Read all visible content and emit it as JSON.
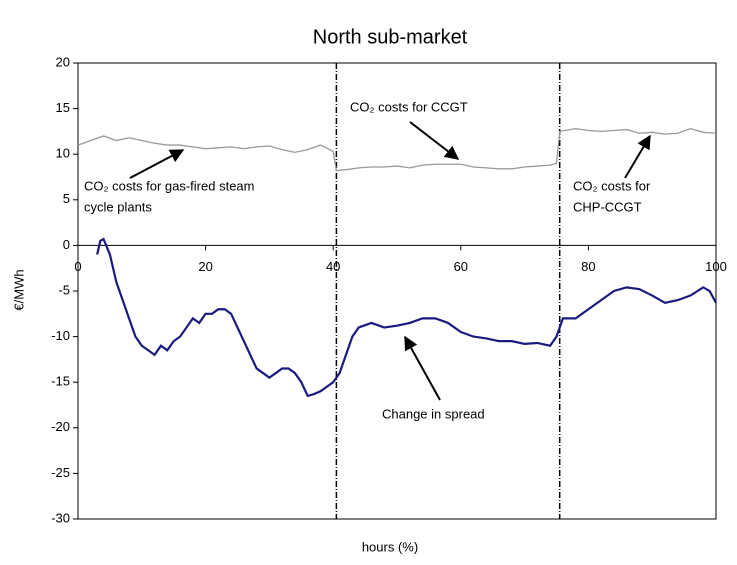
{
  "chart_data": {
    "type": "line",
    "title": "North sub-market",
    "xlabel": "hours (%)",
    "ylabel": "€/MWh",
    "xlim": [
      0,
      100
    ],
    "xticks": [
      0,
      20,
      40,
      60,
      80,
      100
    ],
    "ylim": [
      -30,
      20
    ],
    "yticks": [
      -30,
      -25,
      -20,
      -15,
      -10,
      -5,
      0,
      5,
      10,
      15,
      20
    ],
    "vlines": [
      40.5,
      75.5
    ],
    "series": [
      {
        "color": "#999999",
        "x": [
          0,
          2,
          4,
          6,
          8,
          10,
          12,
          14,
          16,
          18,
          20,
          22,
          24,
          26,
          28,
          30,
          32,
          34,
          36,
          38,
          40,
          40.5,
          42,
          44,
          46,
          48,
          50,
          52,
          54,
          56,
          58,
          60,
          62,
          64,
          66,
          68,
          70,
          72,
          74,
          75,
          75.5,
          78,
          80,
          82,
          84,
          86,
          88,
          90,
          92,
          94,
          96,
          98,
          100
        ],
        "values": [
          11,
          11.5,
          12,
          11.5,
          11.8,
          11.5,
          11.2,
          11,
          11,
          10.8,
          10.6,
          10.7,
          10.8,
          10.6,
          10.8,
          10.9,
          10.5,
          10.2,
          10.5,
          11,
          10.3,
          8.2,
          8.3,
          8.5,
          8.6,
          8.6,
          8.7,
          8.5,
          8.8,
          8.9,
          8.9,
          8.9,
          8.6,
          8.5,
          8.4,
          8.4,
          8.6,
          8.7,
          8.8,
          9,
          12.5,
          12.8,
          12.6,
          12.5,
          12.6,
          12.7,
          12.3,
          12.4,
          12.2,
          12.3,
          12.8,
          12.4,
          12.3
        ]
      },
      {
        "color": "#1a1a80",
        "x": [
          3,
          3.5,
          4,
          5,
          6,
          7,
          8,
          9,
          10,
          11,
          12,
          13,
          14,
          15,
          16,
          17,
          18,
          19,
          20,
          21,
          22,
          23,
          24,
          25,
          26,
          27,
          28,
          29,
          30,
          31,
          32,
          33,
          34,
          35,
          36,
          37,
          38,
          39,
          40,
          41,
          42,
          43,
          44,
          46,
          48,
          50,
          52,
          54,
          56,
          58,
          60,
          62,
          64,
          66,
          68,
          70,
          72,
          74,
          75,
          76,
          78,
          80,
          82,
          84,
          86,
          88,
          90,
          92,
          94,
          96,
          98,
          99,
          100
        ],
        "values": [
          -1,
          0.5,
          0.7,
          -1,
          -4,
          -6,
          -8,
          -10,
          -11,
          -11.5,
          -12,
          -11,
          -11.5,
          -10.5,
          -10,
          -9,
          -8,
          -8.5,
          -7.5,
          -7.5,
          -7,
          -7,
          -7.5,
          -9,
          -10.5,
          -12,
          -13.5,
          -14,
          -14.5,
          -14,
          -13.5,
          -13.5,
          -14,
          -15,
          -16.5,
          -16.3,
          -16,
          -15.5,
          -15,
          -14,
          -12,
          -10,
          -9,
          -8.5,
          -9,
          -8.8,
          -8.5,
          -8,
          -8,
          -8.5,
          -9.5,
          -10,
          -10.2,
          -10.5,
          -10.5,
          -10.8,
          -10.7,
          -11,
          -10,
          -8,
          -8,
          -7,
          -6,
          -5,
          -4.6,
          -4.8,
          -5.5,
          -6.3,
          -6,
          -5.5,
          -4.6,
          -5,
          -6.3
        ]
      }
    ],
    "annotations": [
      {
        "lines": [
          "CO₂ costs for gas-fired steam",
          "cycle plants"
        ]
      },
      {
        "lines": [
          "CO₂ costs for CCGT"
        ]
      },
      {
        "lines": [
          "CO₂ costs for",
          "CHP-CCGT"
        ]
      },
      {
        "lines": [
          "Change in spread"
        ]
      }
    ]
  }
}
